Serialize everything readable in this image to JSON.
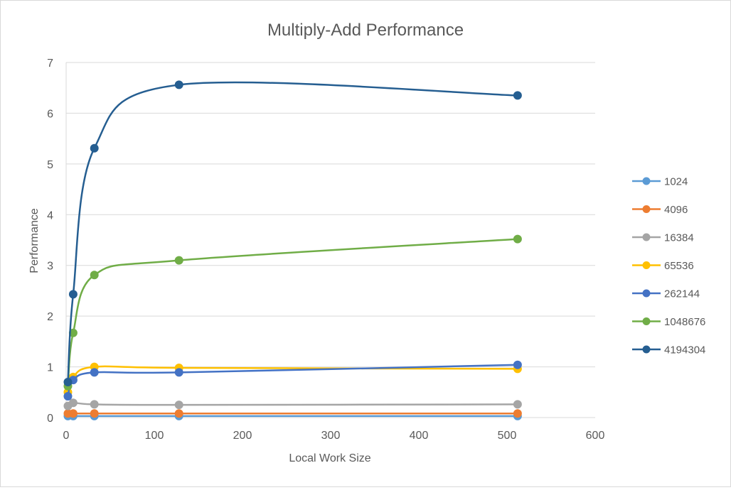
{
  "chart_data": {
    "type": "line",
    "title": "Multiply-Add Performance",
    "xlabel": "Local Work Size",
    "ylabel": "Performance",
    "xlim": [
      0,
      600
    ],
    "ylim": [
      0,
      7
    ],
    "xticks": [
      0,
      100,
      200,
      300,
      400,
      500,
      600
    ],
    "yticks": [
      0,
      1,
      2,
      3,
      4,
      5,
      6,
      7
    ],
    "grid": "horizontal",
    "smoothed": true,
    "legend_position": "right",
    "x": [
      2,
      8,
      32,
      128,
      512
    ],
    "series": [
      {
        "name": "1024",
        "color": "#5b9bd5",
        "values": [
          0.03,
          0.03,
          0.03,
          0.03,
          0.03
        ]
      },
      {
        "name": "4096",
        "color": "#ed7d31",
        "values": [
          0.08,
          0.08,
          0.08,
          0.08,
          0.08
        ]
      },
      {
        "name": "16384",
        "color": "#a5a5a5",
        "values": [
          0.23,
          0.29,
          0.26,
          0.25,
          0.26
        ]
      },
      {
        "name": "65536",
        "color": "#ffc000",
        "values": [
          0.5,
          0.8,
          1.0,
          0.98,
          0.96
        ]
      },
      {
        "name": "262144",
        "color": "#4472c4",
        "values": [
          0.42,
          0.74,
          0.89,
          0.89,
          1.04
        ]
      },
      {
        "name": "1048676",
        "color": "#70ad47",
        "values": [
          0.62,
          1.67,
          2.81,
          3.1,
          3.52
        ]
      },
      {
        "name": "4194304",
        "color": "#255e91",
        "values": [
          0.7,
          2.43,
          5.31,
          6.56,
          6.35
        ]
      }
    ]
  }
}
